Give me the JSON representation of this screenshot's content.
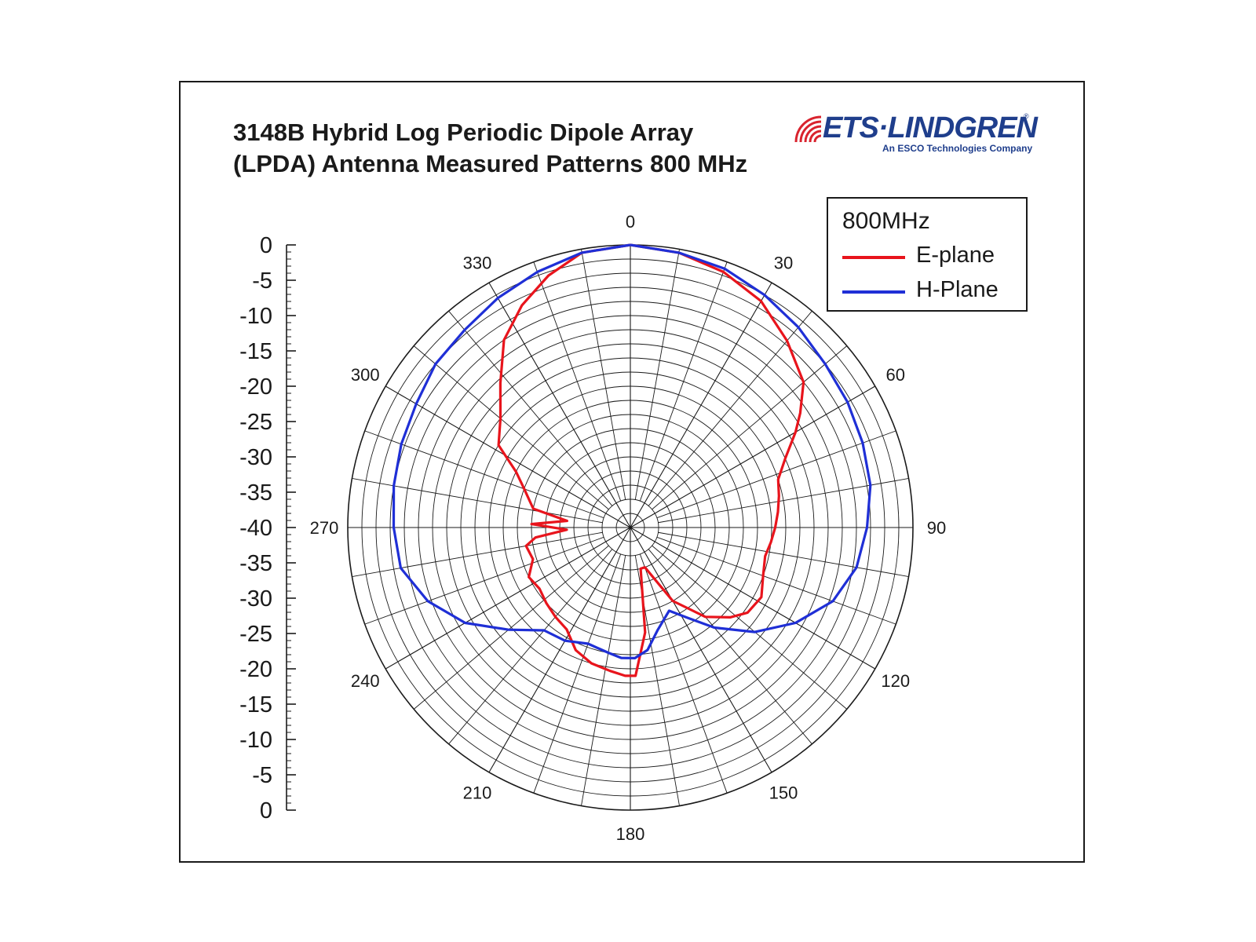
{
  "title_line1": "3148B Hybrid Log Periodic Dipole Array",
  "title_line2": "(LPDA) Antenna Measured Patterns 800 MHz",
  "logo": {
    "name": "ETS·LINDGREN",
    "subtitle": "An ESCO Technologies Company",
    "reg_mark": "®"
  },
  "colors": {
    "e_plane": "#e8141c",
    "h_plane": "#1f2fd6",
    "grid": "#1a1a1a",
    "brand": "#1f3e8c",
    "logo_waves": "#d9232e"
  },
  "chart_data": {
    "type": "polar",
    "angle_ticks": [
      "0",
      "30",
      "60",
      "90",
      "120",
      "150",
      "180",
      "210",
      "240",
      "270",
      "300",
      "330"
    ],
    "r_ticks": [
      "0",
      "-5",
      "-10",
      "-15",
      "-20",
      "-25",
      "-30",
      "-35",
      "-40",
      "-35",
      "-30",
      "-25",
      "-20",
      "-15",
      "-10",
      "-5",
      "0"
    ],
    "r_range_db": [
      -40,
      0
    ],
    "grid": true,
    "legend": {
      "title": "800MHz",
      "position": "top-right"
    },
    "series": [
      {
        "name": "E-plane",
        "points": [
          [
            0,
            0
          ],
          [
            10,
            -0.5
          ],
          [
            20,
            -1.5
          ],
          [
            30,
            -3
          ],
          [
            40,
            -5.5
          ],
          [
            50,
            -8
          ],
          [
            56,
            -11
          ],
          [
            60,
            -13
          ],
          [
            66,
            -16
          ],
          [
            72,
            -18
          ],
          [
            78,
            -18.5
          ],
          [
            84,
            -19
          ],
          [
            90,
            -19.5
          ],
          [
            96,
            -20
          ],
          [
            102,
            -20.5
          ],
          [
            110,
            -20
          ],
          [
            118,
            -19
          ],
          [
            126,
            -19.5
          ],
          [
            132,
            -21
          ],
          [
            140,
            -23.5
          ],
          [
            150,
            -28
          ],
          [
            160,
            -34
          ],
          [
            166,
            -34
          ],
          [
            172,
            -25
          ],
          [
            178,
            -19
          ],
          [
            182,
            -19
          ],
          [
            188,
            -19.5
          ],
          [
            196,
            -20
          ],
          [
            204,
            -21
          ],
          [
            212,
            -23
          ],
          [
            220,
            -23.5
          ],
          [
            228,
            -24
          ],
          [
            236,
            -24.5
          ],
          [
            244,
            -24
          ],
          [
            252,
            -25.5
          ],
          [
            260,
            -25
          ],
          [
            264,
            -26.5
          ],
          [
            268,
            -31
          ],
          [
            272,
            -26
          ],
          [
            276,
            -31
          ],
          [
            281,
            -26
          ],
          [
            290,
            -24
          ],
          [
            296,
            -22
          ],
          [
            302,
            -18
          ],
          [
            310,
            -16
          ],
          [
            318,
            -12.5
          ],
          [
            326,
            -8
          ],
          [
            334,
            -5
          ],
          [
            342,
            -2.5
          ],
          [
            350,
            -0.5
          ],
          [
            360,
            0
          ]
        ]
      },
      {
        "name": "H-Plane",
        "points": [
          [
            0,
            0
          ],
          [
            10,
            -0.5
          ],
          [
            20,
            -1
          ],
          [
            30,
            -2
          ],
          [
            40,
            -3
          ],
          [
            50,
            -4
          ],
          [
            60,
            -4.5
          ],
          [
            70,
            -5
          ],
          [
            80,
            -5.5
          ],
          [
            90,
            -6.5
          ],
          [
            100,
            -7.5
          ],
          [
            110,
            -9.5
          ],
          [
            120,
            -13
          ],
          [
            130,
            -17
          ],
          [
            140,
            -21.5
          ],
          [
            148,
            -25
          ],
          [
            155,
            -27
          ],
          [
            165,
            -25
          ],
          [
            172,
            -22.5
          ],
          [
            178,
            -21.5
          ],
          [
            184,
            -21.5
          ],
          [
            190,
            -22
          ],
          [
            200,
            -22.5
          ],
          [
            210,
            -21.5
          ],
          [
            220,
            -21
          ],
          [
            230,
            -17.5
          ],
          [
            240,
            -13
          ],
          [
            250,
            -9.5
          ],
          [
            260,
            -7
          ],
          [
            270,
            -6.5
          ],
          [
            280,
            -6
          ],
          [
            290,
            -5.5
          ],
          [
            300,
            -5
          ],
          [
            310,
            -4
          ],
          [
            320,
            -3.5
          ],
          [
            330,
            -2.5
          ],
          [
            340,
            -1.5
          ],
          [
            350,
            -0.5
          ],
          [
            360,
            0
          ]
        ]
      }
    ]
  }
}
